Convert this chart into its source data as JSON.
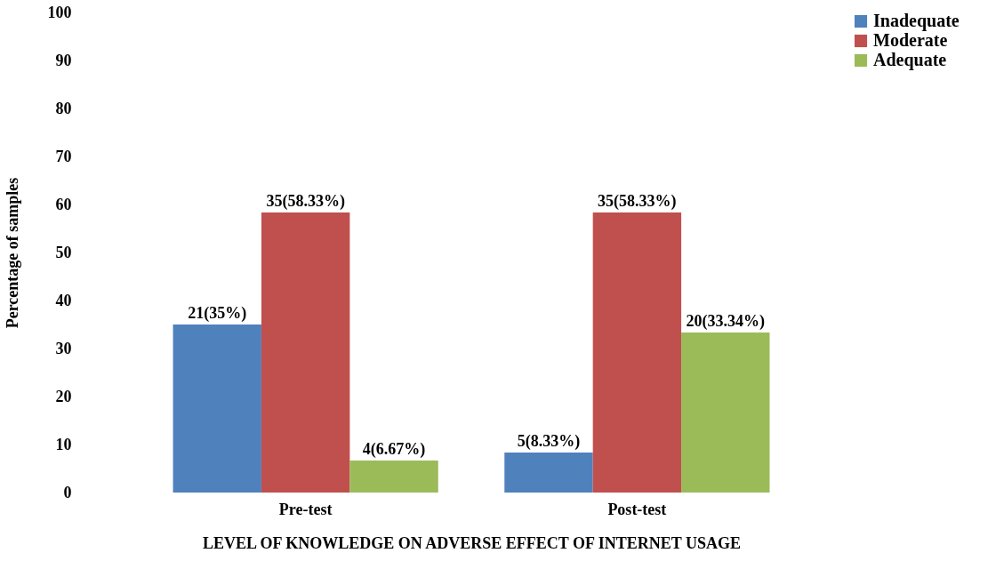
{
  "chart_data": {
    "type": "bar",
    "xlabel": "LEVEL OF KNOWLEDGE ON ADVERSE EFFECT OF INTERNET USAGE",
    "ylabel": "Percentage of samples",
    "categories": [
      "Pre-test",
      "Post-test"
    ],
    "series": [
      {
        "name": "Inadequate",
        "color": "#4f81bd",
        "values": [
          35,
          8.33
        ],
        "value_labels": [
          "21(35%)",
          "5(8.33%)"
        ]
      },
      {
        "name": "Moderate",
        "color": "#c0504d",
        "values": [
          58.33,
          58.33
        ],
        "value_labels": [
          "35(58.33%)",
          "35(58.33%)"
        ]
      },
      {
        "name": "Adequate",
        "color": "#9bbb59",
        "values": [
          6.67,
          33.34
        ],
        "value_labels": [
          "4(6.67%)",
          "20(33.34%)"
        ]
      }
    ],
    "ylim": [
      0,
      100
    ],
    "yticks": [
      0,
      10,
      20,
      30,
      40,
      50,
      60,
      70,
      80,
      90,
      100
    ],
    "grid": false,
    "legend": "top right"
  }
}
